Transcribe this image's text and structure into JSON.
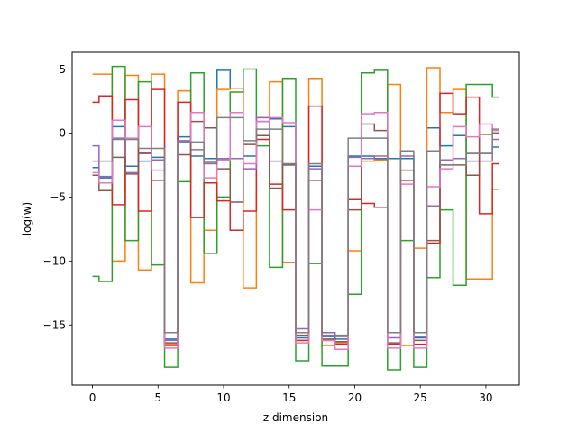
{
  "chart_data": {
    "type": "line",
    "drawstyle": "steps-mid",
    "xlabel": "z dimension",
    "ylabel": "log(w)",
    "xlim": [
      -1.55,
      32.55
    ],
    "ylim": [
      -19.7,
      6.3
    ],
    "xticks": [
      0,
      5,
      10,
      15,
      20,
      25,
      30
    ],
    "yticks": [
      5,
      0,
      -5,
      -10,
      -15
    ],
    "grid": false,
    "legend": "none",
    "x": [
      0,
      1,
      2,
      3,
      4,
      5,
      6,
      7,
      8,
      9,
      10,
      11,
      12,
      13,
      14,
      15,
      16,
      17,
      18,
      19,
      20,
      21,
      22,
      23,
      24,
      25,
      26,
      27,
      28,
      29,
      30,
      31
    ],
    "series": [
      {
        "color": "#1f77b4",
        "values": [
          -2.7,
          -3.5,
          0.5,
          -2.6,
          -2.2,
          -1.9,
          -16.1,
          -0.3,
          -1.8,
          -2.0,
          4.9,
          3.5,
          -1.8,
          0.9,
          1.1,
          0.5,
          -16.0,
          -2.6,
          -15.9,
          -16.1,
          -1.8,
          -1.8,
          -2.0,
          -2.0,
          -2.0,
          -16.0,
          0.4,
          -1.0,
          -0.2,
          -1.6,
          -1.6,
          -1.1
        ]
      },
      {
        "color": "#ff7f0e",
        "values": [
          4.6,
          4.6,
          -10.0,
          4.5,
          -10.7,
          4.6,
          -16.5,
          3.3,
          -11.7,
          -7.6,
          3.4,
          3.5,
          -12.1,
          1.2,
          4.0,
          -10.1,
          -16.2,
          4.2,
          -16.6,
          -16.4,
          -9.2,
          -2.2,
          -2.1,
          3.8,
          -16.6,
          -9.0,
          5.1,
          1.6,
          3.4,
          -11.4,
          -11.4,
          -4.4
        ]
      },
      {
        "color": "#2ca02c",
        "values": [
          -11.2,
          -11.6,
          5.2,
          -8.4,
          4.0,
          -10.3,
          -18.3,
          -3.8,
          4.7,
          -9.4,
          -5.0,
          3.2,
          5.0,
          -1.0,
          -10.5,
          4.2,
          -17.8,
          -10.2,
          -18.2,
          -18.2,
          -12.6,
          4.7,
          4.9,
          -18.5,
          -8.4,
          -18.3,
          -11.3,
          -6.0,
          -11.9,
          3.8,
          3.8,
          2.8
        ]
      },
      {
        "color": "#d62728",
        "values": [
          2.4,
          2.9,
          -5.6,
          2.6,
          -6.1,
          3.4,
          -16.6,
          2.4,
          -6.6,
          -3.9,
          -5.3,
          -7.6,
          -6.1,
          -0.5,
          -4.0,
          -6.0,
          -16.2,
          2.1,
          -16.2,
          -16.5,
          -5.2,
          -5.5,
          -5.8,
          -16.5,
          -3.7,
          -16.5,
          -8.6,
          3.1,
          1.5,
          2.8,
          -6.3,
          -2.4
        ]
      },
      {
        "color": "#9467bd",
        "values": [
          -1.0,
          -3.4,
          -0.4,
          -3.1,
          -1.5,
          -2.1,
          -16.2,
          -0.6,
          -1.3,
          -2.3,
          -2.0,
          -2.0,
          -2.8,
          1.2,
          -2.2,
          -2.5,
          -15.3,
          -2.8,
          -15.6,
          -15.9,
          -1.9,
          -2.0,
          -1.8,
          -16.0,
          -1.8,
          -15.9,
          -5.7,
          -2.1,
          -2.0,
          -2.2,
          -2.2,
          -0.5
        ]
      },
      {
        "color": "#8c564b",
        "values": [
          -3.3,
          -4.5,
          -1.9,
          -3.2,
          -1.6,
          -3.7,
          -16.4,
          -1.7,
          0.9,
          0.4,
          -2.8,
          -5.4,
          -0.9,
          -0.2,
          -4.3,
          -2.5,
          -15.8,
          -3.7,
          -16.1,
          -16.3,
          -6.0,
          0.7,
          0.2,
          -16.4,
          -2.9,
          -16.2,
          -8.4,
          -2.5,
          -2.5,
          -3.3,
          -0.1,
          0.0
        ]
      },
      {
        "color": "#e377c2",
        "values": [
          -3.1,
          -3.9,
          1.0,
          -0.4,
          0.5,
          -2.9,
          -16.8,
          -0.7,
          1.6,
          -3.5,
          -2.1,
          1.6,
          -2.4,
          0.9,
          1.2,
          0.8,
          -16.4,
          -6.0,
          -16.2,
          -16.9,
          -2.6,
          1.5,
          1.6,
          -16.8,
          -4.0,
          -16.8,
          -4.2,
          -2.8,
          0.5,
          -0.3,
          0.7,
          0.2
        ]
      },
      {
        "color": "#7f7f7f",
        "values": [
          -2.2,
          -2.2,
          -0.5,
          -0.5,
          -1.2,
          -1.2,
          -15.6,
          -0.7,
          -0.7,
          -2.4,
          1.2,
          1.2,
          -0.6,
          0.3,
          0.3,
          -2.4,
          -15.6,
          -2.4,
          -15.8,
          -15.8,
          -0.4,
          -0.4,
          -0.4,
          -15.6,
          -1.4,
          -15.6,
          -1.4,
          -2.5,
          -2.5,
          -1.6,
          -1.6,
          0.3
        ]
      }
    ]
  }
}
